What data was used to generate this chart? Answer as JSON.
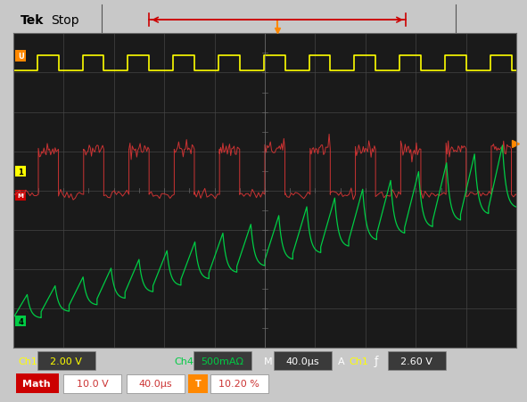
{
  "outer_bg": "#c8c8c8",
  "scope_bg": "#1a1a1a",
  "num_hdiv": 10,
  "num_vdiv": 8,
  "ch1_color": "#ffff00",
  "red_color": "#cc3333",
  "green_color": "#00cc44",
  "orange_color": "#ff8800",
  "ch1_label": "Ch1",
  "ch1_val": "2.00 V",
  "ch4_label": "Ch4",
  "ch4_val": "500mAΩ",
  "time_label": "M",
  "time_val": "40.0μs",
  "trig_label": "A",
  "trig_ch": "Ch1",
  "trig_sym": "ƒ",
  "trig_val": "2.60 V",
  "math_label": "Math",
  "math_v": "10.0 V",
  "math_t": "40.0μs",
  "math_pct": "10.20 %"
}
